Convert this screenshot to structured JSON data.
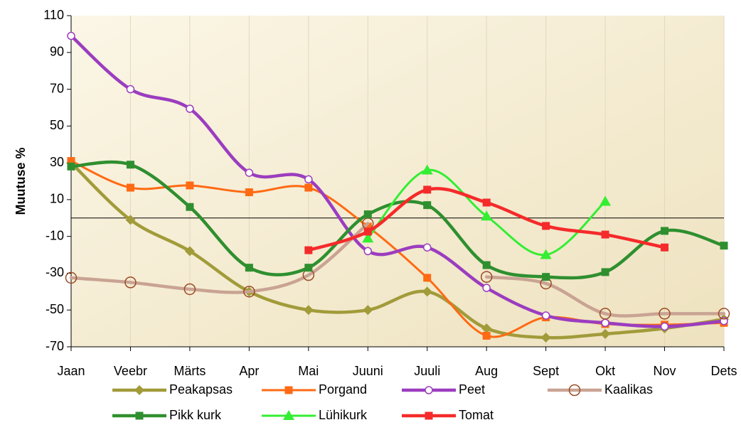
{
  "chart_data": {
    "type": "line",
    "y_label": "Muutuse %",
    "categories": [
      "Jaan",
      "Veebr",
      "Märts",
      "Apr",
      "Mai",
      "Juuni",
      "Juuli",
      "Aug",
      "Sept",
      "Okt",
      "Nov",
      "Dets"
    ],
    "ylim": [
      -70,
      110
    ],
    "yticks": [
      -70,
      -50,
      -30,
      -10,
      10,
      30,
      50,
      70,
      90,
      110
    ],
    "grid": true,
    "series": [
      {
        "name": "Peakapsas",
        "color": "#a19b3a",
        "marker": "diamond",
        "values": [
          30,
          -1,
          -18,
          -40,
          -50,
          -50,
          -40,
          -60,
          -65,
          -63,
          -60,
          -55
        ]
      },
      {
        "name": "Porgand",
        "color": "#ff6a13",
        "marker": "square",
        "values": [
          31,
          16.5,
          17.7,
          14,
          16.5,
          -4.7,
          -32.5,
          -64,
          -54,
          -57.6,
          -58,
          -57
        ]
      },
      {
        "name": "Peet",
        "color": "#9b3dbf",
        "marker": "circle",
        "values": [
          99,
          70,
          59.4,
          24.6,
          21,
          -18,
          -16,
          -38,
          -53,
          -57,
          -59,
          -56
        ]
      },
      {
        "name": "Kaalikas",
        "color": "#c9a393",
        "marker": "ring",
        "values": [
          -32.5,
          -35,
          -38.7,
          -40,
          -31,
          -3,
          null,
          -32,
          -35.6,
          -52,
          -52,
          -52
        ]
      },
      {
        "name": "Pikk kurk",
        "color": "#2f8f2f",
        "marker": "square",
        "values": [
          28,
          29,
          6,
          -27,
          -27,
          2,
          7,
          -25.6,
          -32,
          -29.4,
          -7,
          -15
        ]
      },
      {
        "name": "Lühikurk",
        "color": "#33ee33",
        "marker": "triangle",
        "values": [
          null,
          null,
          null,
          null,
          null,
          -11,
          26,
          1,
          -20,
          9,
          null,
          null
        ]
      },
      {
        "name": "Tomat",
        "color": "#f52a2a",
        "marker": "square",
        "values": [
          null,
          null,
          null,
          null,
          -17.5,
          -7.4,
          15.4,
          8.4,
          -4.3,
          -9,
          -16,
          null
        ]
      }
    ]
  }
}
